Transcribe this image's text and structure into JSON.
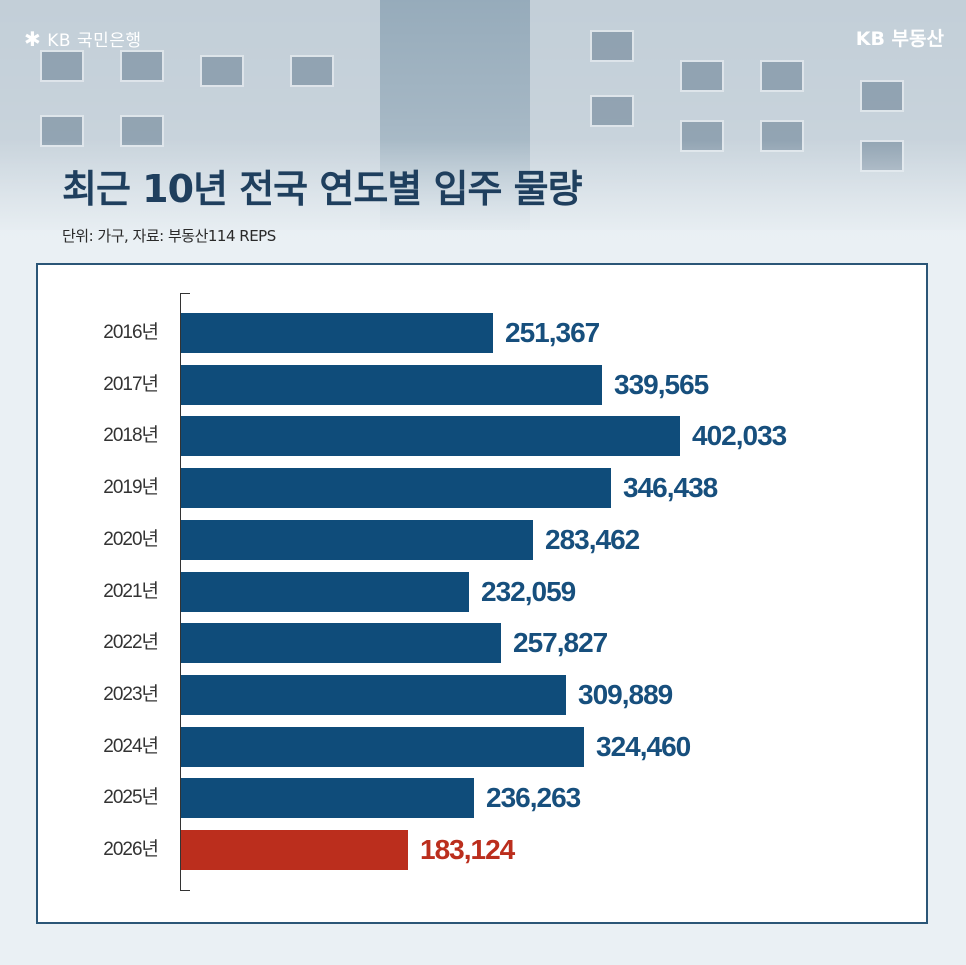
{
  "header": {
    "logo_left": "KB 국민은행",
    "logo_left_icon": "kb-star-icon",
    "logo_right": "KB 부동산",
    "title": "최근 10년 전국 연도별 입주 물량",
    "subtitle": "단위: 가구, 자료:  부동산114 REPS"
  },
  "colors": {
    "bar": "#0f4c7a",
    "highlight": "#bb2e1d",
    "value_text": "#174f7d",
    "title": "#1f3f5e"
  },
  "chart_data": {
    "type": "bar",
    "orientation": "horizontal",
    "title": "최근 10년 전국 연도별 입주 물량",
    "subtitle": "단위: 가구, 자료: 부동산114 REPS",
    "xlabel": "",
    "ylabel": "",
    "categories": [
      "2016년",
      "2017년",
      "2018년",
      "2019년",
      "2020년",
      "2021년",
      "2022년",
      "2023년",
      "2024년",
      "2025년",
      "2026년"
    ],
    "values": [
      251367,
      339565,
      402033,
      346438,
      283462,
      232059,
      257827,
      309889,
      324460,
      236263,
      183124
    ],
    "labels": [
      "251,367",
      "339,565",
      "402,033",
      "346,438",
      "283,462",
      "232,059",
      "257,827",
      "309,889",
      "324,460",
      "236,263",
      "183,124"
    ],
    "highlight_index": 10,
    "grid": false,
    "legend": "none",
    "xlim": [
      0,
      402033
    ]
  }
}
